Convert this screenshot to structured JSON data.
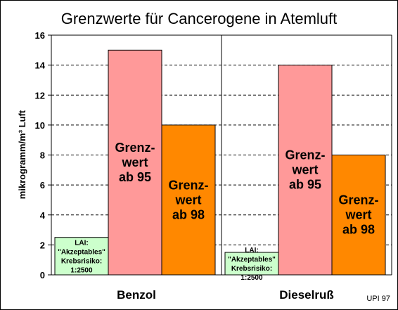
{
  "chart_data": {
    "type": "bar",
    "title": "Grenzwerte für Cancerogene in Atemluft",
    "ylabel": "mikrogramm/m³ Luft",
    "ylim": [
      0,
      16
    ],
    "yticks": [
      "0",
      "2",
      "4",
      "6",
      "8",
      "10",
      "12",
      "14",
      "16"
    ],
    "grid": true,
    "categories": [
      "Benzol",
      "Dieselruß"
    ],
    "series": [
      {
        "values": [
          2.5,
          1.5
        ],
        "color": "#ccffcc",
        "labels": [
          [
            "LAI:",
            "\"Akzeptables\"",
            "Krebsrisiko:",
            "1:2500"
          ],
          [
            "LAI:",
            "\"Akzeptables\"",
            "Krebsrisiko:",
            "1:2500"
          ]
        ]
      },
      {
        "values": [
          15,
          14
        ],
        "color": "#ff9999",
        "labels": [
          [
            "Grenz-",
            "wert",
            "ab 95"
          ],
          [
            "Grenz-",
            "wert",
            "ab 95"
          ]
        ]
      },
      {
        "values": [
          10,
          8
        ],
        "color": "#ff8800",
        "labels": [
          [
            "Grenz-",
            "wert",
            "ab 98"
          ],
          [
            "Grenz-",
            "wert",
            "ab 98"
          ]
        ]
      }
    ],
    "source": "UPI 97"
  }
}
